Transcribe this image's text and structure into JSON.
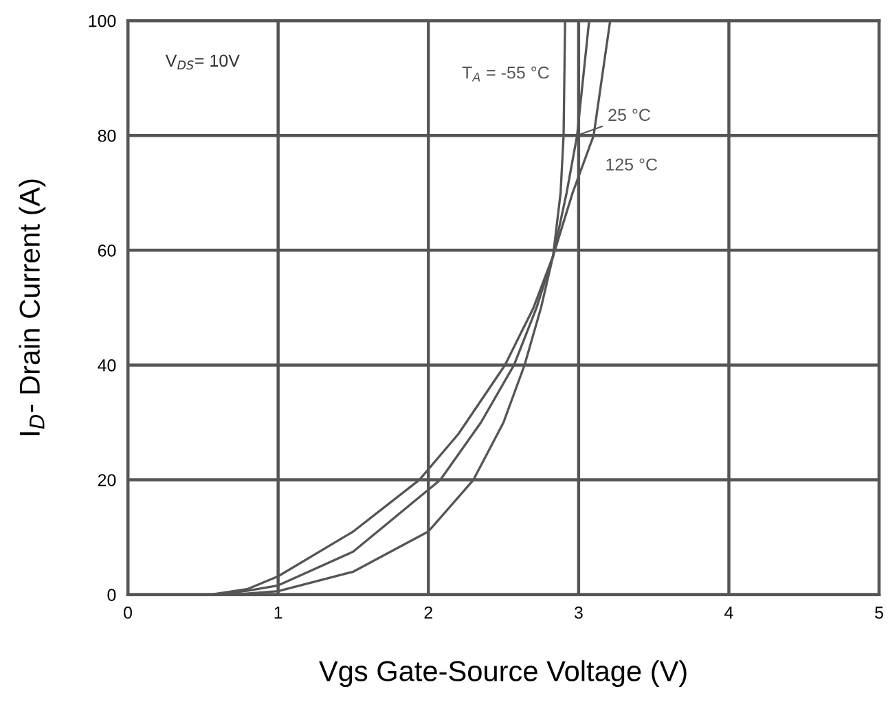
{
  "chart_data": {
    "type": "line",
    "xlabel": "Vgs Gate-Source Voltage (V)",
    "ylabel": "I$_{D}$- Drain Current (A)",
    "xlim": [
      0,
      5
    ],
    "ylim": [
      0,
      100
    ],
    "xticks": [
      0,
      1,
      2,
      3,
      4,
      5
    ],
    "yticks": [
      0,
      20,
      40,
      60,
      80,
      100
    ],
    "grid": true,
    "legend": false,
    "marker": "none",
    "line_style": "solid",
    "annotations": [
      "V$_{DS}$= 10V"
    ],
    "series": [
      {
        "name": "T$_{A}$ = -55 °C",
        "color": "#555555",
        "x": [
          0.55,
          0.8,
          1,
          1.5,
          1.94,
          2.2,
          2.51,
          2.7,
          2.83,
          2.88,
          2.9,
          2.91
        ],
        "values": [
          0,
          1,
          3.2,
          11,
          20,
          28,
          40,
          50,
          59,
          70,
          80,
          100
        ]
      },
      {
        "name": "25 °C",
        "color": "#555555",
        "x": [
          0.6,
          0.8,
          1,
          1.5,
          2.08,
          2.35,
          2.57,
          2.72,
          2.83,
          2.92,
          2.99,
          3.07
        ],
        "values": [
          0,
          0.7,
          1.6,
          7.5,
          20,
          30,
          40,
          50,
          59,
          70,
          80,
          100
        ]
      },
      {
        "name": "125 °C",
        "color": "#555555",
        "x": [
          0.7,
          1,
          1.5,
          2,
          2.3,
          2.5,
          2.64,
          2.75,
          2.83,
          2.96,
          3.1,
          3.21
        ],
        "values": [
          0,
          0.6,
          4,
          11,
          20,
          30,
          40,
          50,
          59,
          70,
          80,
          100
        ]
      }
    ]
  }
}
